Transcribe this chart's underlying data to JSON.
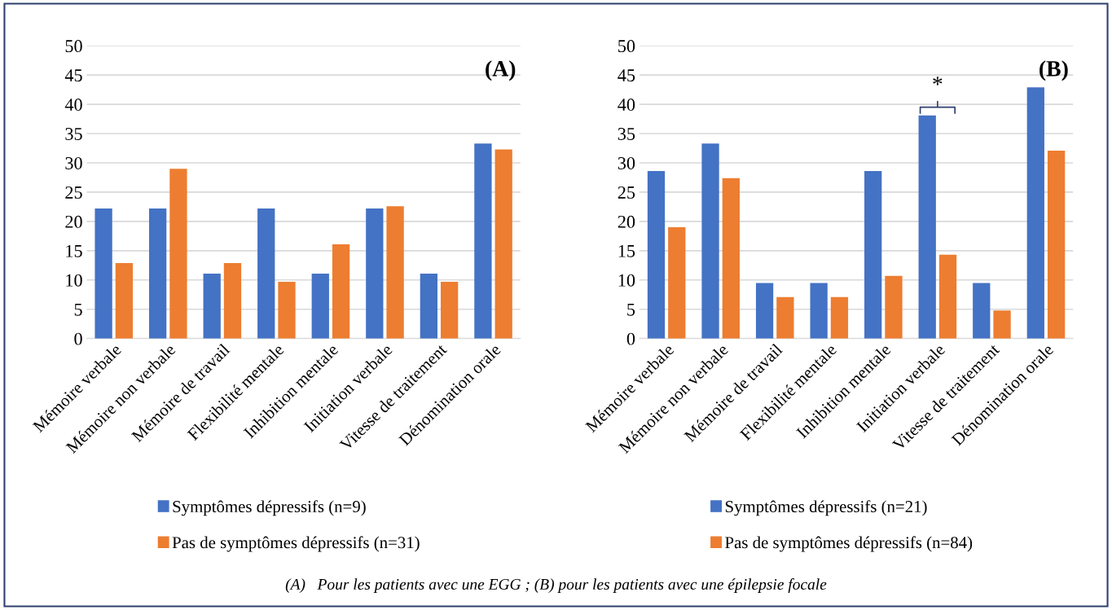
{
  "chart_data": [
    {
      "type": "bar",
      "categories": [
        "Mémoire verbale",
        "Mémoire non verbale",
        "Mémoire de travail",
        "Flexibilité mentale",
        "Inhibition mentale",
        "Initiation verbale",
        "Vitesse de traitement",
        "Dénomination orale"
      ],
      "series": [
        {
          "name": "Symptômes dépressifs (n=9)",
          "color": "#4472c4",
          "values": [
            22.2,
            22.2,
            11.1,
            22.2,
            11.1,
            22.2,
            11.1,
            33.3
          ]
        },
        {
          "name": "Pas de symptômes dépressifs (n=31)",
          "color": "#ed7d31",
          "values": [
            12.9,
            29.0,
            12.9,
            9.7,
            16.1,
            22.6,
            9.7,
            32.3
          ]
        }
      ],
      "ylim": [
        0,
        50
      ],
      "yticks": [
        0,
        5,
        10,
        15,
        20,
        25,
        30,
        35,
        40,
        45,
        50
      ],
      "grid": "y",
      "legend": "bottom",
      "annotations": [
        "(A)"
      ]
    },
    {
      "type": "bar",
      "categories": [
        "Mémoire verbale",
        "Mémoire non verbale",
        "Mémoire de travail",
        "Flexibilité mentale",
        "Inhibition mentale",
        "Initiation verbale",
        "Vitesse de traitement",
        "Dénomination orale"
      ],
      "series": [
        {
          "name": "Symptômes dépressifs (n=21)",
          "color": "#4472c4",
          "values": [
            28.6,
            33.3,
            9.5,
            9.5,
            28.6,
            38.1,
            9.5,
            42.9
          ]
        },
        {
          "name": "Pas de symptômes dépressifs (n=84)",
          "color": "#ed7d31",
          "values": [
            19.0,
            27.4,
            7.1,
            7.1,
            10.7,
            14.3,
            4.8,
            32.1
          ]
        }
      ],
      "ylim": [
        0,
        50
      ],
      "yticks": [
        0,
        5,
        10,
        15,
        20,
        25,
        30,
        35,
        40,
        45,
        50
      ],
      "grid": "y",
      "legend": "bottom",
      "annotations": [
        "(B)",
        {
          "text": "*",
          "x": "Initiation verbale",
          "y": 38.1
        },
        "(A)   Pour les patients avec une EGG ; (B) pour les patients avec une épilepsie focale"
      ]
    }
  ]
}
